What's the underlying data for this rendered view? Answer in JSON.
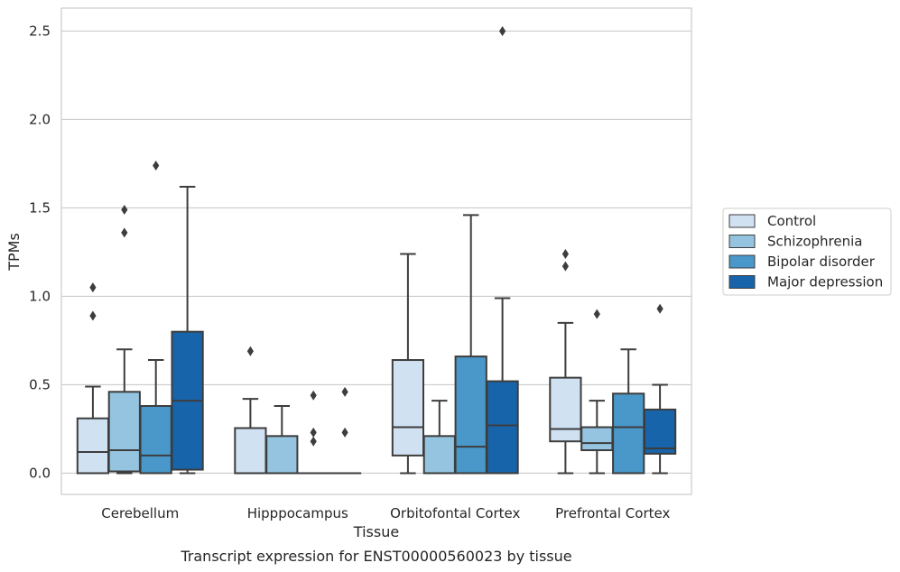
{
  "chart_data": {
    "type": "box",
    "title": "",
    "caption": "Transcript expression for ENST00000560023 by tissue",
    "xlabel": "Tissue",
    "ylabel": "TPMs",
    "ylim": [
      -0.12,
      2.63
    ],
    "yticks": [
      0.0,
      0.5,
      1.0,
      1.5,
      2.0,
      2.5
    ],
    "ytick_labels": [
      "0.0",
      "0.5",
      "1.0",
      "1.5",
      "2.0",
      "2.5"
    ],
    "grid": "horizontal",
    "legend_position": "right",
    "categories": [
      "Cerebellum",
      "Hipppocampus",
      "Orbitofontal Cortex",
      "Prefrontal Cortex"
    ],
    "series": [
      {
        "name": "Control",
        "color": "#d0e1f2",
        "boxes": [
          {
            "whisker_low": 0.0,
            "q1": 0.0,
            "median": 0.12,
            "q3": 0.31,
            "whisker_high": 0.49,
            "outliers": [
              0.89,
              1.05
            ]
          },
          {
            "whisker_low": 0.0,
            "q1": 0.0,
            "median": 0.0,
            "q3": 0.255,
            "whisker_high": 0.42,
            "outliers": [
              0.69
            ]
          },
          {
            "whisker_low": 0.0,
            "q1": 0.1,
            "median": 0.26,
            "q3": 0.64,
            "whisker_high": 1.24,
            "outliers": []
          },
          {
            "whisker_low": 0.0,
            "q1": 0.18,
            "median": 0.25,
            "q3": 0.54,
            "whisker_high": 0.85,
            "outliers": [
              1.17,
              1.24
            ]
          }
        ]
      },
      {
        "name": "Schizophrenia",
        "color": "#94c4df",
        "boxes": [
          {
            "whisker_low": 0.0,
            "q1": 0.01,
            "median": 0.13,
            "q3": 0.46,
            "whisker_high": 0.7,
            "outliers": [
              1.36,
              1.49
            ]
          },
          {
            "whisker_low": 0.0,
            "q1": 0.0,
            "median": 0.0,
            "q3": 0.21,
            "whisker_high": 0.38,
            "outliers": []
          },
          {
            "whisker_low": 0.0,
            "q1": 0.0,
            "median": 0.0,
            "q3": 0.21,
            "whisker_high": 0.41,
            "outliers": []
          },
          {
            "whisker_low": 0.0,
            "q1": 0.13,
            "median": 0.17,
            "q3": 0.26,
            "whisker_high": 0.41,
            "outliers": [
              0.9
            ]
          }
        ]
      },
      {
        "name": "Bipolar disorder",
        "color": "#4a98c9",
        "boxes": [
          {
            "whisker_low": 0.0,
            "q1": 0.0,
            "median": 0.1,
            "q3": 0.38,
            "whisker_high": 0.64,
            "outliers": [
              1.74
            ]
          },
          {
            "whisker_low": 0.0,
            "q1": 0.0,
            "median": 0.0,
            "q3": 0.0,
            "whisker_high": 0.0,
            "outliers": [
              0.18,
              0.23,
              0.44
            ]
          },
          {
            "whisker_low": 0.0,
            "q1": 0.0,
            "median": 0.15,
            "q3": 0.66,
            "whisker_high": 1.46,
            "outliers": []
          },
          {
            "whisker_low": 0.0,
            "q1": 0.0,
            "median": 0.26,
            "q3": 0.45,
            "whisker_high": 0.7,
            "outliers": []
          }
        ]
      },
      {
        "name": "Major depression",
        "color": "#1764ab",
        "boxes": [
          {
            "whisker_low": 0.0,
            "q1": 0.02,
            "median": 0.41,
            "q3": 0.8,
            "whisker_high": 1.62,
            "outliers": []
          },
          {
            "whisker_low": 0.0,
            "q1": 0.0,
            "median": 0.0,
            "q3": 0.0,
            "whisker_high": 0.0,
            "outliers": [
              0.23,
              0.46
            ]
          },
          {
            "whisker_low": 0.0,
            "q1": 0.0,
            "median": 0.27,
            "q3": 0.52,
            "whisker_high": 0.99,
            "outliers": [
              2.5
            ]
          },
          {
            "whisker_low": 0.0,
            "q1": 0.11,
            "median": 0.14,
            "q3": 0.36,
            "whisker_high": 0.5,
            "outliers": [
              0.93
            ]
          }
        ]
      }
    ]
  }
}
